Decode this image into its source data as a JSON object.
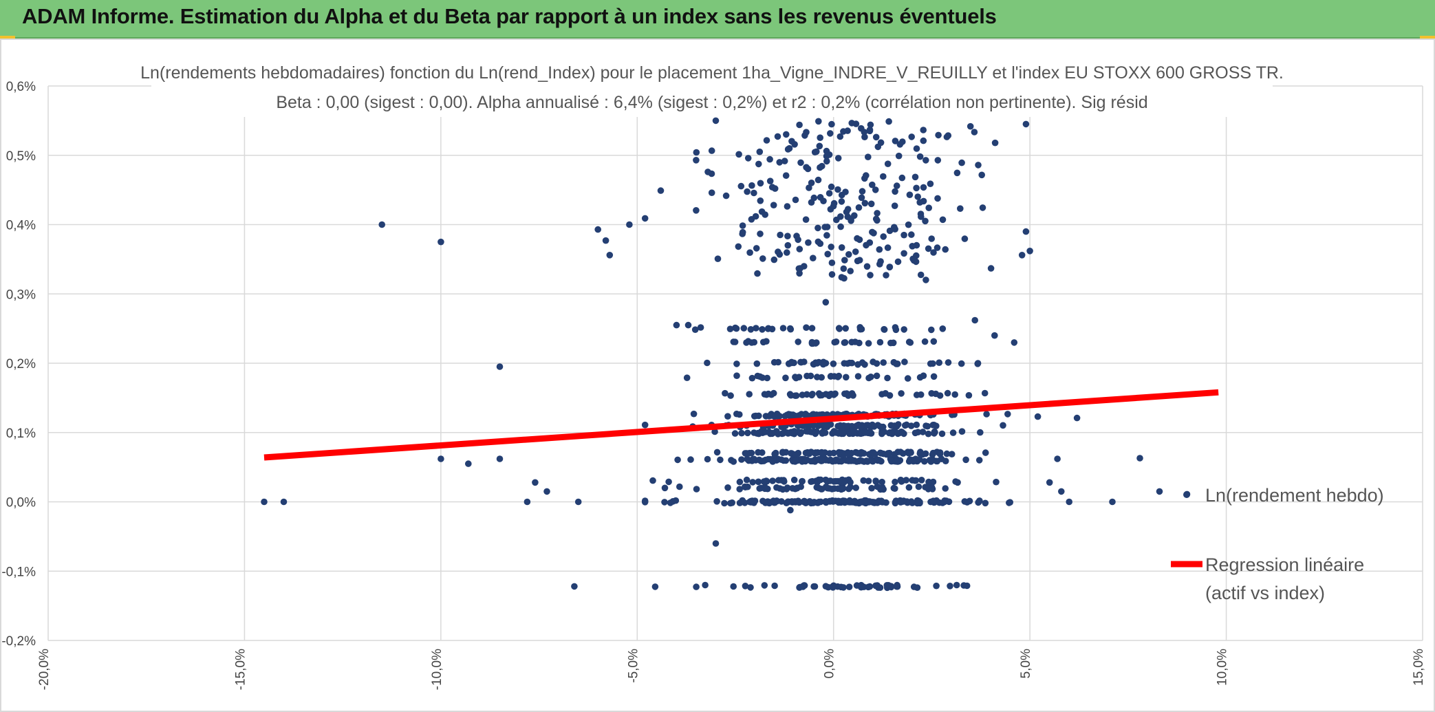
{
  "banner": {
    "title": "ADAM Informe. Estimation du Alpha et du Beta par rapport à un index sans les revenus éventuels"
  },
  "colors": {
    "banner": "#7cc67a",
    "points": "#243f73",
    "regression": "#ff0000",
    "grid": "#d9d9d9",
    "accent": "#f2c12e"
  },
  "chart_data": {
    "type": "scatter",
    "title_lines": [
      "Ln(rendements hebdomadaires) fonction du Ln(rend_Index) pour le placement 1ha_Vigne_INDRE_V_REUILLY et l'index EU STOXX 600 GROSS TR.",
      "Beta : 0,00 (sigest : 0,00). Alpha annualisé : 6,4% (sigest : 0,2%) et r2 : 0,2% (corrélation non pertinente). Sig résid"
    ],
    "xlim": [
      -0.2,
      0.15
    ],
    "ylim": [
      -0.002,
      0.006
    ],
    "x_ticks": [
      "-20,0%",
      "-15,0%",
      "-10,0%",
      "-5,0%",
      "0,0%",
      "5,0%",
      "10,0%",
      "15,0%"
    ],
    "y_ticks": [
      "-0,2%",
      "-0,1%",
      "0,0%",
      "0,1%",
      "0,2%",
      "0,3%",
      "0,4%",
      "0,5%",
      "0,6%"
    ],
    "grid": true,
    "legend_position": "right",
    "series": [
      {
        "name": "Ln(rendement hebdo)",
        "kind": "scatter",
        "clusters": [
          {
            "y": 0.0,
            "count": 150,
            "x_sd": 0.018
          },
          {
            "y": 0.0002,
            "count": 55,
            "x_sd": 0.017
          },
          {
            "y": 0.0003,
            "count": 60,
            "x_sd": 0.017
          },
          {
            "y": 0.0006,
            "count": 130,
            "x_sd": 0.016
          },
          {
            "y": 0.0007,
            "count": 90,
            "x_sd": 0.015
          },
          {
            "y": 0.001,
            "count": 110,
            "x_sd": 0.015
          },
          {
            "y": 0.0011,
            "count": 80,
            "x_sd": 0.014
          },
          {
            "y": 0.00125,
            "count": 110,
            "x_sd": 0.014
          },
          {
            "y": 0.00155,
            "count": 45,
            "x_sd": 0.015
          },
          {
            "y": 0.0018,
            "count": 30,
            "x_sd": 0.015
          },
          {
            "y": 0.002,
            "count": 45,
            "x_sd": 0.015
          },
          {
            "y": 0.0023,
            "count": 30,
            "x_sd": 0.015
          },
          {
            "y": 0.0025,
            "count": 30,
            "x_sd": 0.015
          },
          {
            "y": -0.00122,
            "count": 50,
            "x_sd": 0.018
          }
        ],
        "band": {
          "y_min": 0.0032,
          "y_max": 0.0055,
          "count": 240,
          "x_sd": 0.016
        },
        "points": [
          [
            -0.145,
            0.0
          ],
          [
            -0.14,
            0.0
          ],
          [
            -0.115,
            0.004
          ],
          [
            -0.1,
            0.00375
          ],
          [
            -0.1,
            0.00062
          ],
          [
            -0.093,
            0.00055
          ],
          [
            -0.085,
            0.00195
          ],
          [
            -0.085,
            0.00062
          ],
          [
            -0.076,
            0.00028
          ],
          [
            -0.078,
            0.0
          ],
          [
            -0.073,
            0.00015
          ],
          [
            -0.065,
            0.0
          ],
          [
            -0.066,
            -0.00122
          ],
          [
            -0.06,
            0.00393
          ],
          [
            -0.058,
            0.00377
          ],
          [
            -0.052,
            0.004
          ],
          [
            -0.057,
            0.00356
          ],
          [
            -0.048,
            0.00409
          ],
          [
            -0.044,
            0.00449
          ],
          [
            -0.04,
            0.00255
          ],
          [
            -0.037,
            0.00255
          ],
          [
            -0.032,
            0.00476
          ],
          [
            -0.031,
            0.00446
          ],
          [
            -0.03,
            0.0055
          ],
          [
            -0.03,
            -0.0006
          ],
          [
            -0.011,
            -0.00012
          ],
          [
            -0.002,
            0.00288
          ],
          [
            0.049,
            0.0039
          ],
          [
            0.05,
            0.00362
          ],
          [
            0.048,
            0.00356
          ],
          [
            0.049,
            0.00545
          ],
          [
            0.052,
            0.00123
          ],
          [
            0.057,
            0.00062
          ],
          [
            0.062,
            0.00121
          ],
          [
            0.06,
            0.0
          ],
          [
            0.055,
            0.00028
          ],
          [
            0.058,
            0.00015
          ],
          [
            0.071,
            0.0
          ],
          [
            0.078,
            0.00063
          ],
          [
            0.083,
            0.00015
          ],
          [
            0.09,
            0.00011
          ],
          [
            0.041,
            0.0024
          ],
          [
            0.036,
            0.00262
          ]
        ]
      },
      {
        "name": "Regression linéaire (actif vs index)",
        "kind": "line",
        "x": [
          -0.145,
          0.098
        ],
        "y": [
          0.00064,
          0.00158
        ]
      }
    ],
    "legend": [
      {
        "label": "Ln(rendement hebdo)"
      },
      {
        "label_lines": [
          "Regression linéaire",
          "(actif vs index)"
        ]
      }
    ]
  }
}
